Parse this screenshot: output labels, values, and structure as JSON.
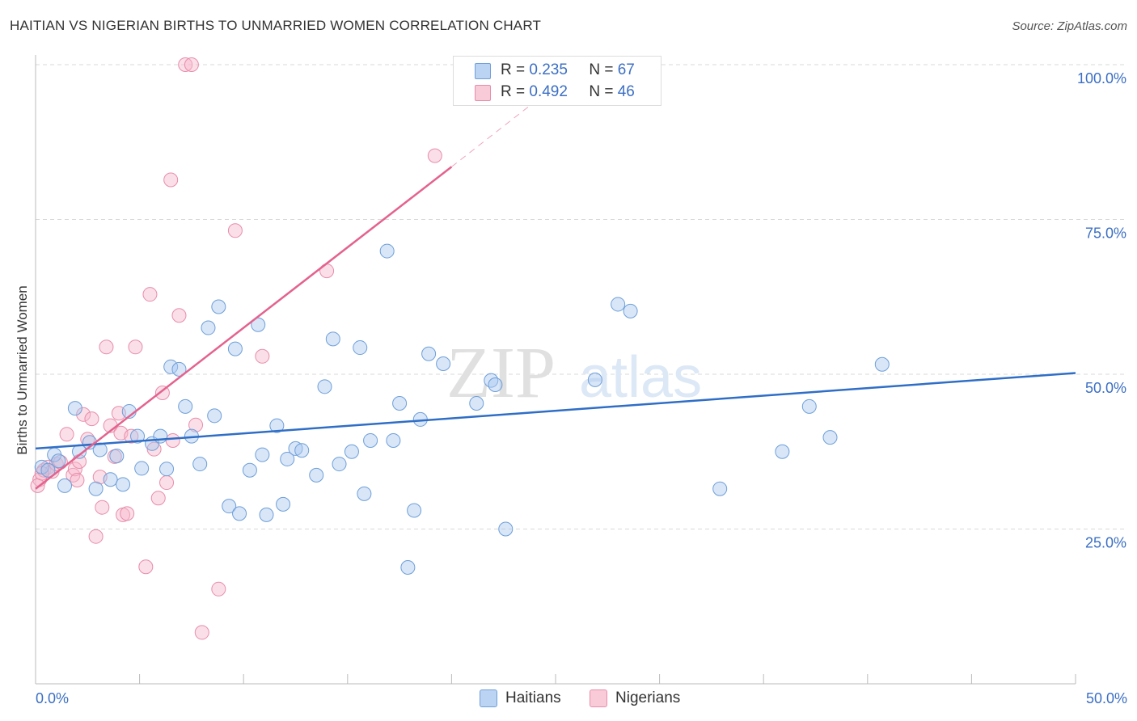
{
  "title": "HAITIAN VS NIGERIAN BIRTHS TO UNMARRIED WOMEN CORRELATION CHART",
  "source": "Source: ZipAtlas.com",
  "watermark": {
    "zip": "ZIP",
    "atlas": "atlas"
  },
  "legend": {
    "series1": {
      "r_label": "R =",
      "r_value": "0.235",
      "n_label": "N =",
      "n_value": "67"
    },
    "series2": {
      "r_label": "R =",
      "r_value": "0.492",
      "n_label": "N =",
      "n_value": "46"
    }
  },
  "bottom_legend": {
    "haitians": "Haitians",
    "nigerians": "Nigerians"
  },
  "colors": {
    "haitian_fill": "#a9c8ef",
    "haitian_stroke": "#6e9fd8",
    "haitian_line": "#2f6ec6",
    "nigerian_fill": "#f6b8cb",
    "nigerian_stroke": "#e88daa",
    "nigerian_line": "#e4628e",
    "tick_label": "#3c6fc4",
    "grid": "#d8d8d8"
  },
  "chart_data": {
    "type": "scatter",
    "title": "HAITIAN VS NIGERIAN BIRTHS TO UNMARRIED WOMEN CORRELATION CHART",
    "xlabel": "",
    "ylabel": "Births to Unmarried Women",
    "xlim": [
      0,
      50
    ],
    "ylim": [
      0,
      100
    ],
    "x_tick_labels": [
      "0.0%",
      "50.0%"
    ],
    "y_ticks": [
      25,
      50,
      75,
      100
    ],
    "y_tick_labels": [
      "25.0%",
      "50.0%",
      "75.0%",
      "100.0%"
    ],
    "grid": true,
    "legend_position": "top-center",
    "series": [
      {
        "name": "Haitians",
        "r": 0.235,
        "n": 67,
        "trend": {
          "x": [
            0,
            50
          ],
          "y": [
            38.0,
            50.2
          ]
        },
        "points": [
          [
            0.3,
            35.0
          ],
          [
            0.6,
            34.5
          ],
          [
            0.9,
            37.0
          ],
          [
            1.1,
            36.0
          ],
          [
            1.4,
            32.0
          ],
          [
            1.9,
            44.5
          ],
          [
            2.1,
            37.5
          ],
          [
            2.6,
            39.0
          ],
          [
            2.9,
            31.5
          ],
          [
            3.1,
            37.8
          ],
          [
            3.6,
            33.0
          ],
          [
            3.9,
            36.8
          ],
          [
            4.2,
            32.2
          ],
          [
            4.5,
            44.0
          ],
          [
            4.9,
            40.0
          ],
          [
            5.1,
            34.8
          ],
          [
            5.6,
            38.8
          ],
          [
            6.0,
            40.0
          ],
          [
            6.3,
            34.7
          ],
          [
            6.5,
            51.2
          ],
          [
            6.9,
            50.8
          ],
          [
            7.2,
            44.8
          ],
          [
            7.5,
            40.0
          ],
          [
            7.9,
            35.5
          ],
          [
            8.3,
            57.5
          ],
          [
            8.6,
            43.3
          ],
          [
            8.8,
            60.9
          ],
          [
            9.3,
            28.7
          ],
          [
            9.6,
            54.1
          ],
          [
            9.8,
            27.5
          ],
          [
            10.3,
            34.5
          ],
          [
            10.7,
            58.0
          ],
          [
            10.9,
            37.0
          ],
          [
            11.1,
            27.3
          ],
          [
            11.6,
            41.7
          ],
          [
            11.9,
            29.0
          ],
          [
            12.1,
            36.3
          ],
          [
            12.5,
            38.0
          ],
          [
            12.8,
            37.7
          ],
          [
            13.5,
            33.7
          ],
          [
            13.9,
            48.0
          ],
          [
            14.3,
            55.7
          ],
          [
            14.6,
            35.5
          ],
          [
            15.2,
            37.5
          ],
          [
            15.6,
            54.3
          ],
          [
            15.8,
            30.7
          ],
          [
            16.1,
            39.3
          ],
          [
            16.9,
            69.9
          ],
          [
            17.2,
            39.3
          ],
          [
            17.5,
            45.3
          ],
          [
            17.9,
            18.8
          ],
          [
            18.2,
            28.0
          ],
          [
            18.5,
            42.7
          ],
          [
            18.9,
            53.3
          ],
          [
            19.6,
            51.7
          ],
          [
            21.2,
            45.3
          ],
          [
            21.9,
            49.0
          ],
          [
            22.1,
            48.3
          ],
          [
            22.6,
            25.0
          ],
          [
            26.9,
            49.1
          ],
          [
            28.0,
            61.3
          ],
          [
            28.6,
            60.2
          ],
          [
            32.9,
            31.5
          ],
          [
            35.9,
            37.5
          ],
          [
            37.2,
            44.8
          ],
          [
            38.2,
            39.8
          ],
          [
            40.7,
            51.6
          ]
        ]
      },
      {
        "name": "Nigerians",
        "r": 0.492,
        "n": 46,
        "trend": {
          "x": [
            0,
            20
          ],
          "y": [
            31.5,
            83.5
          ]
        },
        "trend_dashed": {
          "x": [
            20,
            24
          ],
          "y": [
            83.5,
            94.0
          ]
        },
        "points": [
          [
            0.2,
            33.0
          ],
          [
            0.4,
            34.5
          ],
          [
            0.6,
            35.0
          ],
          [
            0.8,
            34.3
          ],
          [
            1.0,
            35.5
          ],
          [
            1.2,
            35.8
          ],
          [
            1.5,
            40.3
          ],
          [
            1.8,
            33.7
          ],
          [
            1.9,
            34.7
          ],
          [
            2.0,
            32.9
          ],
          [
            2.1,
            35.9
          ],
          [
            2.3,
            43.5
          ],
          [
            2.5,
            39.5
          ],
          [
            2.7,
            42.8
          ],
          [
            2.9,
            23.8
          ],
          [
            3.1,
            33.4
          ],
          [
            3.2,
            28.5
          ],
          [
            3.4,
            54.4
          ],
          [
            3.6,
            41.7
          ],
          [
            3.8,
            36.7
          ],
          [
            4.0,
            43.7
          ],
          [
            4.1,
            40.5
          ],
          [
            4.2,
            27.3
          ],
          [
            4.4,
            27.5
          ],
          [
            4.6,
            40.0
          ],
          [
            4.8,
            54.4
          ],
          [
            5.3,
            18.9
          ],
          [
            5.5,
            62.9
          ],
          [
            5.7,
            37.9
          ],
          [
            5.9,
            30.0
          ],
          [
            6.1,
            47.0
          ],
          [
            6.3,
            32.5
          ],
          [
            6.5,
            81.4
          ],
          [
            6.6,
            39.3
          ],
          [
            6.9,
            59.5
          ],
          [
            7.2,
            100.0
          ],
          [
            7.5,
            100.0
          ],
          [
            7.7,
            41.8
          ],
          [
            8.0,
            8.3
          ],
          [
            8.8,
            15.3
          ],
          [
            9.6,
            73.2
          ],
          [
            10.9,
            52.9
          ],
          [
            14.0,
            66.7
          ],
          [
            19.2,
            85.3
          ],
          [
            0.1,
            32.0
          ],
          [
            0.3,
            34.0
          ]
        ]
      }
    ]
  }
}
